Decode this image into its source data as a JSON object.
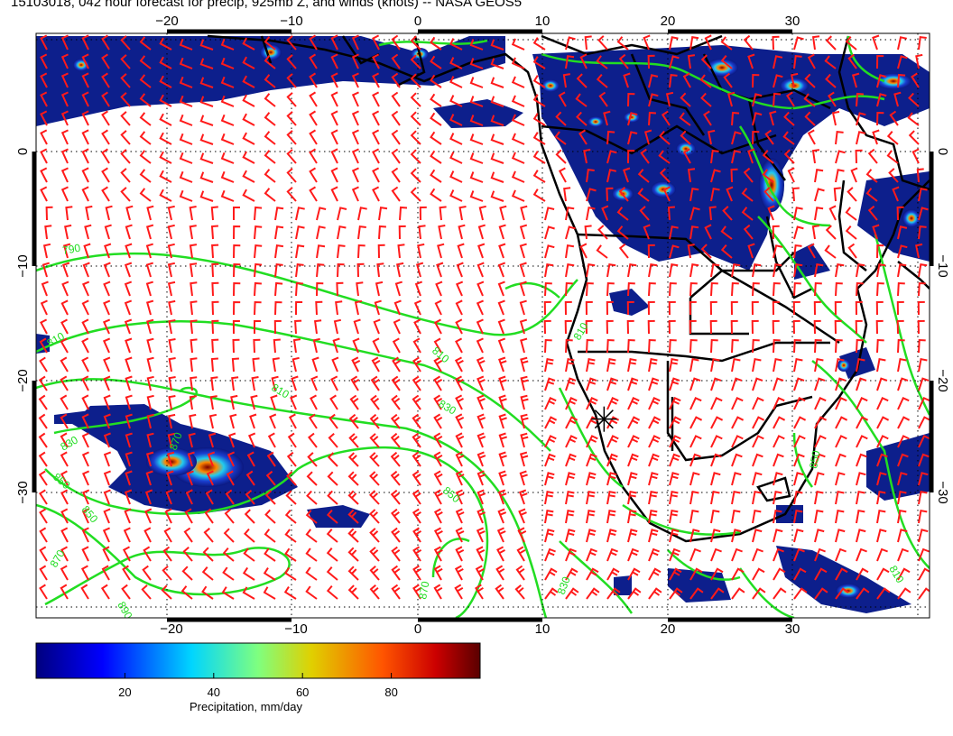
{
  "title": "15103018, 042 hour forecast for precip, 925mb Z, and winds (knots) -- NASA GEOS5",
  "map": {
    "lon_range": [
      -30,
      40
    ],
    "lat_range": [
      -40,
      10
    ],
    "lon_ticks": [
      -20,
      -10,
      0,
      10,
      20,
      30
    ],
    "lat_ticks": [
      0,
      -10,
      -20,
      -30
    ],
    "lon_tick_labels": [
      "−20",
      "−10",
      "0",
      "10",
      "20",
      "30"
    ],
    "lat_tick_labels": [
      "0",
      "−10",
      "−20",
      "−30"
    ],
    "grid": "dotted",
    "marker": {
      "type": "star",
      "lon": 14.5,
      "lat": -23
    },
    "contour_labels": [
      "790",
      "810",
      "810",
      "830",
      "830",
      "850",
      "850",
      "850",
      "870",
      "870",
      "890",
      "870",
      "830",
      "810",
      "810",
      "810",
      "850"
    ],
    "colors": {
      "contour": "#22dd22",
      "wind_barbs": "#ff1a1a",
      "coastline": "#000000",
      "precip_low": "#08126a",
      "precip_high": "#5a0000"
    }
  },
  "colorbar": {
    "label": "Precipitation, mm/day",
    "ticks": [
      20,
      40,
      60,
      80
    ],
    "tick_labels": [
      "20",
      "40",
      "60",
      "80"
    ],
    "range": [
      0,
      100
    ],
    "colormap": "jet"
  }
}
